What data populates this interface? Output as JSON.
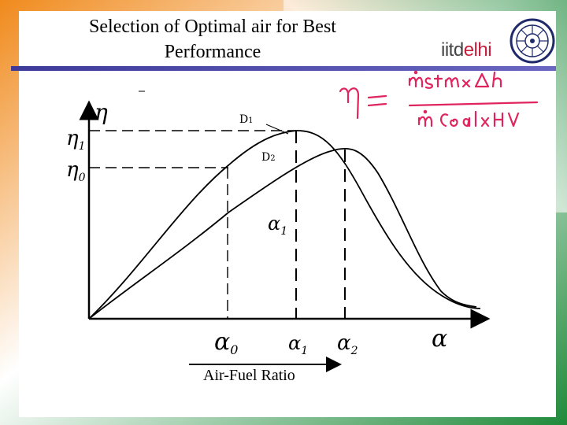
{
  "slide": {
    "title_line1": "Selection of Optimal air for Best",
    "title_line2": "Performance",
    "logo": {
      "text_part1": "iitd",
      "text_part2": "elhi",
      "accent_color": "#c41e3a"
    },
    "caption": "Air-Fuel Ratio"
  },
  "diagram": {
    "y_axis_symbol": "η",
    "x_axis_symbol": "α",
    "y_marks": [
      {
        "symbol": "η",
        "subscript": "1"
      },
      {
        "symbol": "η",
        "subscript": "0"
      }
    ],
    "x_marks": [
      {
        "symbol": "α",
        "subscript": "0"
      },
      {
        "symbol": "α",
        "subscript": "1"
      },
      {
        "symbol": "α",
        "subscript": "2"
      }
    ],
    "curve_labels": [
      {
        "symbol": "D",
        "subscript": "1"
      },
      {
        "symbol": "D",
        "subscript": "2"
      }
    ],
    "point_label": {
      "symbol": "α",
      "subscript": "1"
    }
  },
  "handwritten_formula": {
    "lhs": "η =",
    "numerator": "ṁ stm × Δh",
    "denominator": "ṁ Coal × HV"
  },
  "colors": {
    "border_orange": "#f08a1c",
    "border_green": "#1f8a3a",
    "title_bar": "#4a47a8",
    "annotation": "#e0245e"
  }
}
